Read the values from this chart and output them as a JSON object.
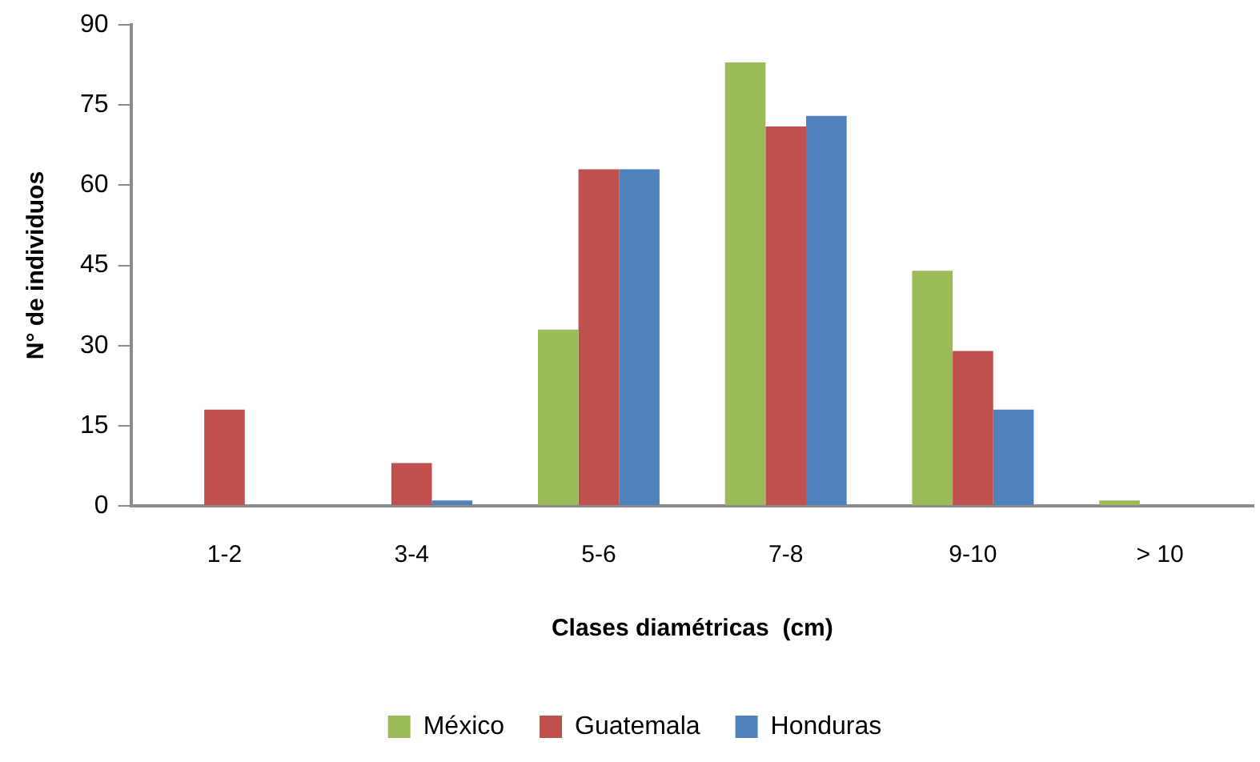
{
  "chart_data": {
    "type": "bar",
    "xlabel": "Clases diamétricas  (cm)",
    "ylabel": "N° de individuos",
    "categories": [
      "1-2",
      "3-4",
      "5-6",
      "7-8",
      "9-10",
      "> 10"
    ],
    "series": [
      {
        "name": "México",
        "color": "#9bbb59",
        "values": [
          0,
          0,
          33,
          83,
          44,
          1
        ]
      },
      {
        "name": "Guatemala",
        "color": "#c0504d",
        "values": [
          18,
          8,
          63,
          71,
          29,
          0
        ]
      },
      {
        "name": "Honduras",
        "color": "#4f81bd",
        "values": [
          0,
          1,
          63,
          73,
          18,
          0
        ]
      }
    ],
    "ylim": [
      0,
      90
    ],
    "yticks": [
      0,
      15,
      30,
      45,
      60,
      75,
      90
    ],
    "grid": false,
    "legend": "bottom"
  }
}
